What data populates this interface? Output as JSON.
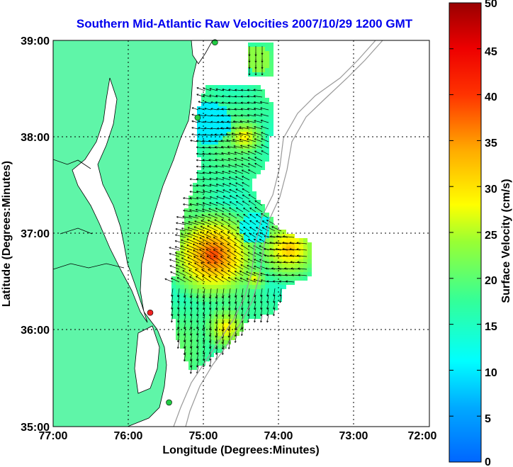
{
  "title": "Southern Mid-Atlantic Raw Velocities 2007/10/29 1200 GMT",
  "x_axis": {
    "label": "Longitude (Degrees:Minutes)",
    "ticks": [
      "77:00",
      "76:00",
      "75:00",
      "74:00",
      "73:00",
      "72:00"
    ]
  },
  "y_axis": {
    "label": "Latitude (Degrees:Minutes)",
    "ticks": [
      "39:00",
      "38:00",
      "37:00",
      "36:00",
      "35:00"
    ]
  },
  "colorbar": {
    "label": "Surface Velocity (cm/s)",
    "ticks": [
      "50",
      "45",
      "40",
      "35",
      "30",
      "25",
      "20",
      "15",
      "10",
      "5",
      "0"
    ],
    "range": [
      0,
      50
    ]
  },
  "colors": {
    "land": "#5ff5a8",
    "ocean": "#ffffff",
    "title": "#0000ee",
    "site_green": "#22cc44",
    "site_red": "#ee2222",
    "bathymetry": "#999999"
  },
  "map": {
    "lon_range": [
      -77,
      -72
    ],
    "lat_range": [
      35,
      39
    ],
    "grid": "dotted",
    "sites": [
      {
        "lon": -74.85,
        "lat": 38.98,
        "status": "green"
      },
      {
        "lon": -75.08,
        "lat": 38.2,
        "status": "green"
      },
      {
        "lon": -75.71,
        "lat": 36.18,
        "status": "red"
      },
      {
        "lon": -75.46,
        "lat": 35.25,
        "status": "green"
      }
    ]
  }
}
